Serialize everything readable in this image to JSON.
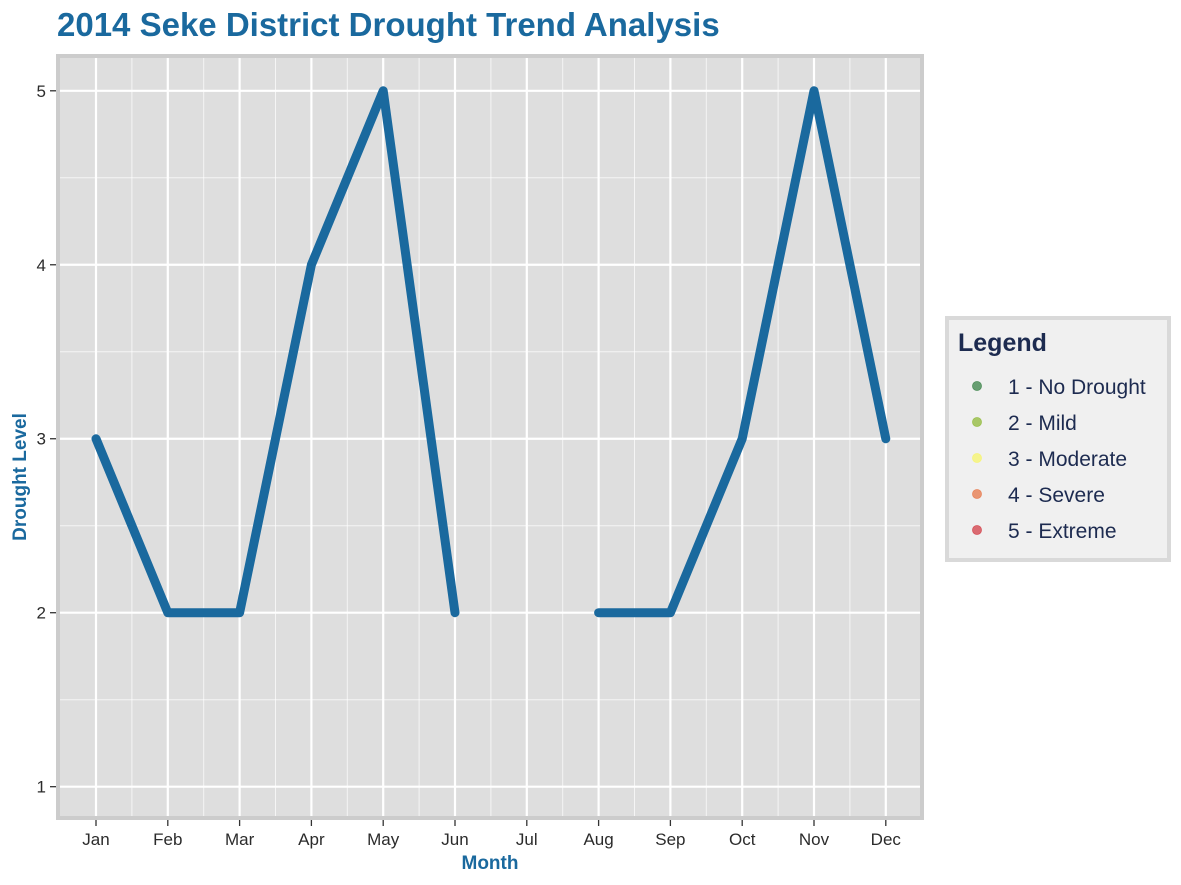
{
  "chart_data": {
    "type": "line",
    "title": "2014 Seke District Drought Trend Analysis",
    "xlabel": "Month",
    "ylabel": "Drought Level",
    "categories": [
      "Jan",
      "Feb",
      "Mar",
      "Apr",
      "May",
      "Jun",
      "Jul",
      "Aug",
      "Sep",
      "Oct",
      "Nov",
      "Dec"
    ],
    "values": [
      3,
      2,
      2,
      4,
      5,
      2,
      null,
      2,
      2,
      3,
      5,
      3
    ],
    "ylim": [
      0.82,
      5.2
    ],
    "yticks": [
      1,
      2,
      3,
      4,
      5
    ],
    "grid": true,
    "legend_position": "right",
    "legend": {
      "title": "Legend",
      "items": [
        {
          "label": "1 - No Drought",
          "color": "#4f8f5b"
        },
        {
          "label": "2 - Mild",
          "color": "#9bc04e"
        },
        {
          "label": "3 - Moderate",
          "color": "#f6f47a"
        },
        {
          "label": "4 - Severe",
          "color": "#e8855c"
        },
        {
          "label": "5 - Extreme",
          "color": "#d6525a"
        }
      ]
    },
    "colors": {
      "line": "#1a699e",
      "title": "#1a699e",
      "panel": "#dedede",
      "panel_border": "#cccccc",
      "grid": "#ffffff",
      "legend_bg": "#f0f0f0",
      "legend_border": "#d9d9d9",
      "legend_text": "#1d2b50"
    }
  }
}
